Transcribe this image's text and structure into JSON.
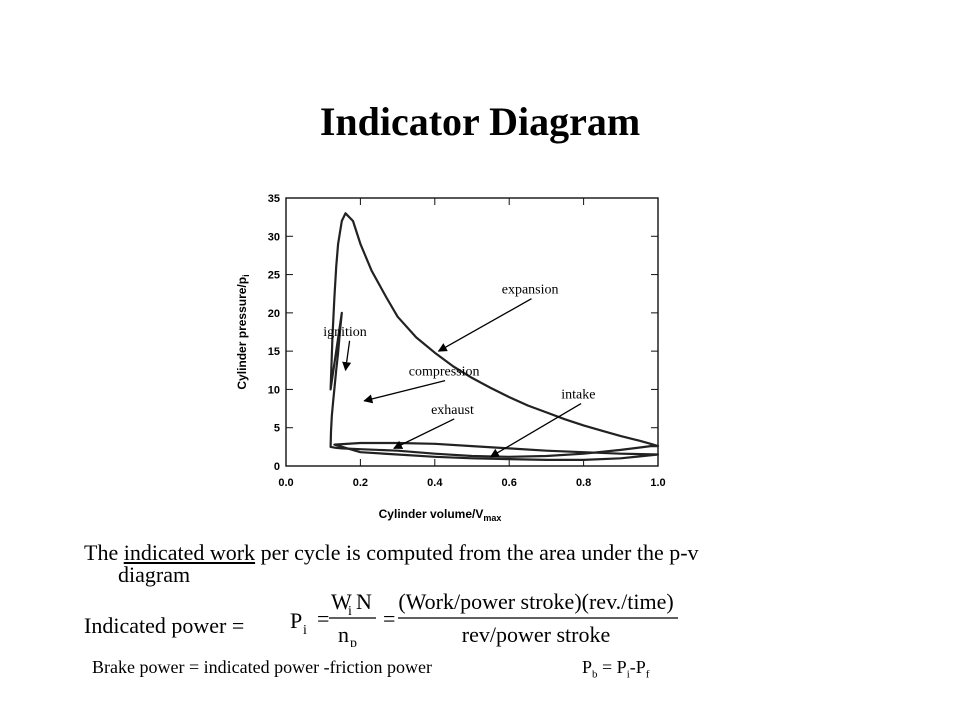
{
  "slide": {
    "title": "Indicator Diagram",
    "text_parts": [
      "The ",
      "indicated work",
      " per cycle is computed from the area under the p-v"
    ],
    "text_line2": "diagram",
    "indicated_power_label": "Indicated power =",
    "formula": {
      "p": "P",
      "p_sub": "i",
      "eq": "=",
      "num_w": "W",
      "num_w_sub": "i",
      "num_n": "N",
      "den_n": "n",
      "den_n_sub": "p",
      "rhs_num": "(Work/power stroke)(rev./time)",
      "rhs_den": "rev/power stroke"
    },
    "brake_text": "Brake power  = indicated power -friction power",
    "pb": {
      "p": "P",
      "b": "b",
      "eq": " = P",
      "i": "i",
      "minus": "-P",
      "f": "f"
    }
  },
  "chart_data": {
    "type": "line",
    "xlabel": "Cylinder volume/V",
    "xlabel_sub": "max",
    "ylabel": "Cylinder pressure/p",
    "ylabel_sub": "i",
    "xlim": [
      0.0,
      1.0
    ],
    "ylim": [
      0,
      35
    ],
    "xticks": [
      "0.0",
      "0.2",
      "0.4",
      "0.6",
      "0.8",
      "1.0"
    ],
    "yticks": [
      "0",
      "5",
      "10",
      "15",
      "20",
      "25",
      "30",
      "35"
    ],
    "series": [
      {
        "x": [
          0.12,
          0.125,
          0.13,
          0.135,
          0.14,
          0.15,
          0.16,
          0.18,
          0.2,
          0.23,
          0.27,
          0.3,
          0.35,
          0.4,
          0.45,
          0.5,
          0.55,
          0.6,
          0.65,
          0.7,
          0.75,
          0.8,
          0.85,
          0.9,
          0.95,
          0.98,
          1.0,
          0.98,
          0.9,
          0.8,
          0.7,
          0.6,
          0.5,
          0.4,
          0.3,
          0.2,
          0.15,
          0.13,
          0.12,
          0.121,
          0.123,
          0.127,
          0.131,
          0.135,
          0.14,
          0.145,
          0.15
        ],
        "y": [
          10,
          17,
          22,
          26,
          29,
          32,
          33,
          32,
          29,
          25.5,
          22,
          19.5,
          16.8,
          14.8,
          13,
          11.5,
          10.2,
          9,
          7.9,
          7,
          6.1,
          5.3,
          4.6,
          3.9,
          3.3,
          2.9,
          2.6,
          2.6,
          2.1,
          1.6,
          1.3,
          1.2,
          1.3,
          1.6,
          2.0,
          2.2,
          2.3,
          2.4,
          2.5,
          4.5,
          6.5,
          8.5,
          10.5,
          12.5,
          14.8,
          17.5,
          20
        ]
      },
      {
        "x": [
          0.13,
          0.2,
          0.3,
          0.4,
          0.5,
          0.6,
          0.7,
          0.8,
          0.9,
          1.0,
          0.9,
          0.8,
          0.7,
          0.6,
          0.5,
          0.4,
          0.3,
          0.2,
          0.13
        ],
        "y": [
          2.8,
          3.0,
          3.0,
          2.9,
          2.6,
          2.3,
          2.0,
          1.8,
          1.6,
          1.5,
          1.0,
          0.8,
          0.8,
          0.9,
          1.0,
          1.2,
          1.5,
          1.8,
          2.8
        ]
      }
    ],
    "annotations": [
      {
        "text": "expansion",
        "x": 0.58,
        "y": 22.5,
        "tx": 0.41,
        "ty": 15
      },
      {
        "text": "ignition",
        "x": 0.1,
        "y": 17,
        "tx": 0.16,
        "ty": 12.5
      },
      {
        "text": "compression",
        "x": 0.33,
        "y": 11.8,
        "tx": 0.21,
        "ty": 8.5
      },
      {
        "text": "intake",
        "x": 0.74,
        "y": 8.8,
        "tx": 0.55,
        "ty": 1.2
      },
      {
        "text": "exhaust",
        "x": 0.39,
        "y": 6.8,
        "tx": 0.29,
        "ty": 2.3
      }
    ]
  }
}
